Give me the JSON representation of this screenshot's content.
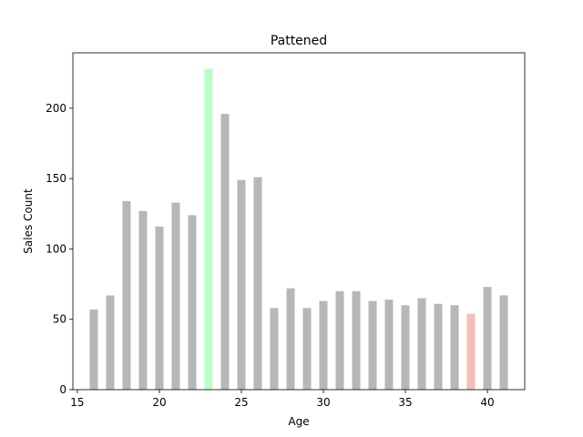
{
  "chart_data": {
    "type": "bar",
    "title": "Pattened",
    "xlabel": "Age",
    "ylabel": "Sales Count",
    "x": [
      16,
      17,
      18,
      19,
      20,
      21,
      22,
      23,
      24,
      25,
      26,
      27,
      28,
      29,
      30,
      31,
      32,
      33,
      34,
      35,
      36,
      37,
      38,
      39,
      40,
      41
    ],
    "values": [
      57,
      67,
      134,
      127,
      116,
      133,
      124,
      228,
      196,
      149,
      151,
      58,
      72,
      58,
      63,
      70,
      70,
      63,
      64,
      60,
      65,
      61,
      60,
      54,
      73,
      67
    ],
    "xlim": [
      14.725,
      42.275
    ],
    "ylim": [
      0,
      239.4
    ],
    "xticks": [
      15,
      20,
      25,
      30,
      35,
      40
    ],
    "yticks": [
      0,
      50,
      100,
      150,
      200
    ],
    "grid": false,
    "colors": {
      "default": "#b7b7b7",
      "max": "#b8ffc8",
      "min": "#f7bdb7"
    }
  }
}
